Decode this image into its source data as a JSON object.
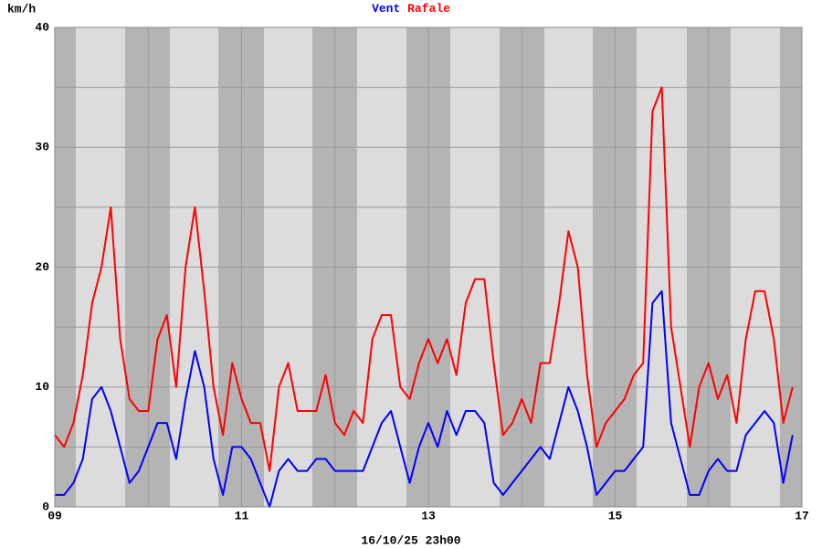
{
  "chart_data": {
    "type": "line",
    "y_label": "km/h",
    "x_label": "16/10/25 23h00",
    "xlim": [
      9,
      17
    ],
    "xticks": [
      {
        "value": 9,
        "label": "09"
      },
      11,
      13,
      15,
      17
    ],
    "xminorticks": [
      10,
      12,
      14,
      16
    ],
    "ylim": [
      0,
      40
    ],
    "yticks": [
      0,
      10,
      20,
      30,
      40
    ],
    "yminorticks": [
      5,
      15,
      25,
      35
    ],
    "grid": true,
    "x": [
      9.0,
      9.1,
      9.2,
      9.3,
      9.4,
      9.5,
      9.6,
      9.7,
      9.8,
      9.9,
      10.0,
      10.1,
      10.2,
      10.3,
      10.4,
      10.5,
      10.6,
      10.7,
      10.8,
      10.9,
      11.0,
      11.1,
      11.2,
      11.3,
      11.4,
      11.5,
      11.6,
      11.7,
      11.8,
      11.9,
      12.0,
      12.1,
      12.2,
      12.3,
      12.4,
      12.5,
      12.6,
      12.7,
      12.8,
      12.9,
      13.0,
      13.1,
      13.2,
      13.3,
      13.4,
      13.5,
      13.6,
      13.7,
      13.8,
      13.9,
      14.0,
      14.1,
      14.2,
      14.3,
      14.4,
      14.5,
      14.6,
      14.7,
      14.8,
      14.9,
      15.0,
      15.1,
      15.2,
      15.3,
      15.4,
      15.5,
      15.6,
      15.7,
      15.8,
      15.9,
      16.0,
      16.1,
      16.2,
      16.3,
      16.4,
      16.5,
      16.6,
      16.7,
      16.8,
      16.9
    ],
    "series": [
      {
        "name": "Vent",
        "color": "#0000ff",
        "values": [
          1,
          1,
          2,
          4,
          9,
          10,
          8,
          5,
          2,
          3,
          5,
          7,
          7,
          4,
          9,
          13,
          10,
          4,
          1,
          5,
          5,
          4,
          2,
          0,
          3,
          4,
          3,
          3,
          4,
          4,
          3,
          3,
          3,
          3,
          5,
          7,
          8,
          5,
          2,
          5,
          7,
          5,
          8,
          6,
          8,
          8,
          7,
          2,
          1,
          2,
          3,
          4,
          5,
          4,
          7,
          10,
          8,
          5,
          1,
          2,
          3,
          3,
          4,
          5,
          17,
          18,
          7,
          4,
          1,
          1,
          3,
          4,
          3,
          3,
          6,
          7,
          8,
          7,
          2,
          6
        ]
      },
      {
        "name": "Rafale",
        "color": "#ff0000",
        "values": [
          6,
          5,
          7,
          11,
          17,
          20,
          25,
          14,
          9,
          8,
          8,
          14,
          16,
          10,
          20,
          25,
          18,
          10,
          6,
          12,
          9,
          7,
          7,
          3,
          10,
          12,
          8,
          8,
          8,
          11,
          7,
          6,
          8,
          7,
          14,
          16,
          16,
          10,
          9,
          12,
          14,
          12,
          14,
          11,
          17,
          19,
          19,
          12,
          6,
          7,
          9,
          7,
          12,
          12,
          17,
          23,
          20,
          11,
          5,
          7,
          8,
          9,
          11,
          12,
          33,
          35,
          15,
          10,
          5,
          10,
          12,
          9,
          11,
          7,
          14,
          18,
          18,
          14,
          7,
          10
        ]
      }
    ]
  }
}
